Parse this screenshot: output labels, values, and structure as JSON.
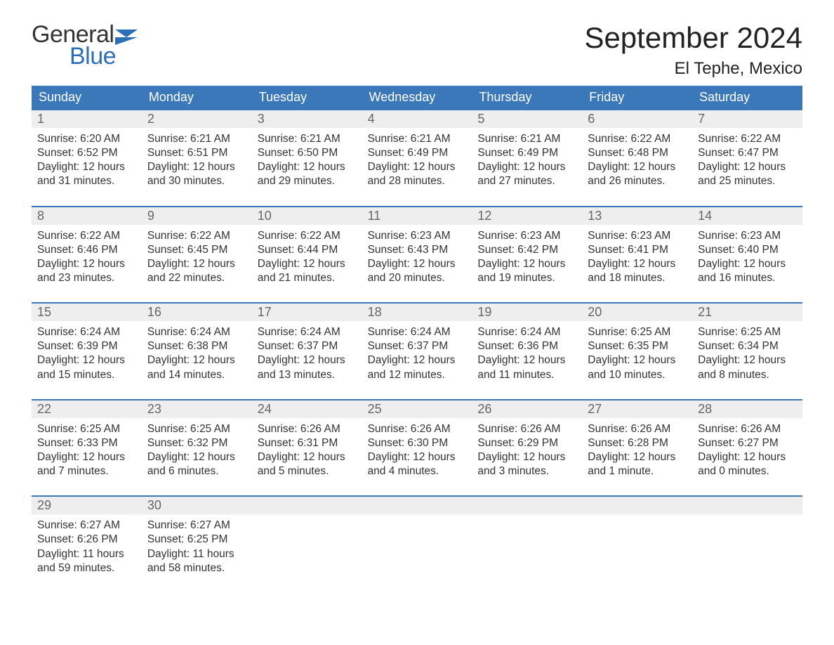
{
  "logo": {
    "general": "General",
    "blue": "Blue",
    "flag_color": "#2d6fb5"
  },
  "header": {
    "month_title": "September 2024",
    "location": "El Tephe, Mexico"
  },
  "style": {
    "header_bg": "#3a78b9",
    "header_text": "#ffffff",
    "daynum_bg": "#eeeeee",
    "daynum_color": "#666666",
    "body_text": "#333333",
    "week_border": "#3a78b9",
    "page_bg": "#ffffff",
    "title_fontsize": 42,
    "location_fontsize": 24,
    "dayhead_fontsize": 18,
    "body_fontsize": 15.5
  },
  "day_names": [
    "Sunday",
    "Monday",
    "Tuesday",
    "Wednesday",
    "Thursday",
    "Friday",
    "Saturday"
  ],
  "weeks": [
    [
      {
        "n": "1",
        "sunrise": "Sunrise: 6:20 AM",
        "sunset": "Sunset: 6:52 PM",
        "daylight": "Daylight: 12 hours and 31 minutes."
      },
      {
        "n": "2",
        "sunrise": "Sunrise: 6:21 AM",
        "sunset": "Sunset: 6:51 PM",
        "daylight": "Daylight: 12 hours and 30 minutes."
      },
      {
        "n": "3",
        "sunrise": "Sunrise: 6:21 AM",
        "sunset": "Sunset: 6:50 PM",
        "daylight": "Daylight: 12 hours and 29 minutes."
      },
      {
        "n": "4",
        "sunrise": "Sunrise: 6:21 AM",
        "sunset": "Sunset: 6:49 PM",
        "daylight": "Daylight: 12 hours and 28 minutes."
      },
      {
        "n": "5",
        "sunrise": "Sunrise: 6:21 AM",
        "sunset": "Sunset: 6:49 PM",
        "daylight": "Daylight: 12 hours and 27 minutes."
      },
      {
        "n": "6",
        "sunrise": "Sunrise: 6:22 AM",
        "sunset": "Sunset: 6:48 PM",
        "daylight": "Daylight: 12 hours and 26 minutes."
      },
      {
        "n": "7",
        "sunrise": "Sunrise: 6:22 AM",
        "sunset": "Sunset: 6:47 PM",
        "daylight": "Daylight: 12 hours and 25 minutes."
      }
    ],
    [
      {
        "n": "8",
        "sunrise": "Sunrise: 6:22 AM",
        "sunset": "Sunset: 6:46 PM",
        "daylight": "Daylight: 12 hours and 23 minutes."
      },
      {
        "n": "9",
        "sunrise": "Sunrise: 6:22 AM",
        "sunset": "Sunset: 6:45 PM",
        "daylight": "Daylight: 12 hours and 22 minutes."
      },
      {
        "n": "10",
        "sunrise": "Sunrise: 6:22 AM",
        "sunset": "Sunset: 6:44 PM",
        "daylight": "Daylight: 12 hours and 21 minutes."
      },
      {
        "n": "11",
        "sunrise": "Sunrise: 6:23 AM",
        "sunset": "Sunset: 6:43 PM",
        "daylight": "Daylight: 12 hours and 20 minutes."
      },
      {
        "n": "12",
        "sunrise": "Sunrise: 6:23 AM",
        "sunset": "Sunset: 6:42 PM",
        "daylight": "Daylight: 12 hours and 19 minutes."
      },
      {
        "n": "13",
        "sunrise": "Sunrise: 6:23 AM",
        "sunset": "Sunset: 6:41 PM",
        "daylight": "Daylight: 12 hours and 18 minutes."
      },
      {
        "n": "14",
        "sunrise": "Sunrise: 6:23 AM",
        "sunset": "Sunset: 6:40 PM",
        "daylight": "Daylight: 12 hours and 16 minutes."
      }
    ],
    [
      {
        "n": "15",
        "sunrise": "Sunrise: 6:24 AM",
        "sunset": "Sunset: 6:39 PM",
        "daylight": "Daylight: 12 hours and 15 minutes."
      },
      {
        "n": "16",
        "sunrise": "Sunrise: 6:24 AM",
        "sunset": "Sunset: 6:38 PM",
        "daylight": "Daylight: 12 hours and 14 minutes."
      },
      {
        "n": "17",
        "sunrise": "Sunrise: 6:24 AM",
        "sunset": "Sunset: 6:37 PM",
        "daylight": "Daylight: 12 hours and 13 minutes."
      },
      {
        "n": "18",
        "sunrise": "Sunrise: 6:24 AM",
        "sunset": "Sunset: 6:37 PM",
        "daylight": "Daylight: 12 hours and 12 minutes."
      },
      {
        "n": "19",
        "sunrise": "Sunrise: 6:24 AM",
        "sunset": "Sunset: 6:36 PM",
        "daylight": "Daylight: 12 hours and 11 minutes."
      },
      {
        "n": "20",
        "sunrise": "Sunrise: 6:25 AM",
        "sunset": "Sunset: 6:35 PM",
        "daylight": "Daylight: 12 hours and 10 minutes."
      },
      {
        "n": "21",
        "sunrise": "Sunrise: 6:25 AM",
        "sunset": "Sunset: 6:34 PM",
        "daylight": "Daylight: 12 hours and 8 minutes."
      }
    ],
    [
      {
        "n": "22",
        "sunrise": "Sunrise: 6:25 AM",
        "sunset": "Sunset: 6:33 PM",
        "daylight": "Daylight: 12 hours and 7 minutes."
      },
      {
        "n": "23",
        "sunrise": "Sunrise: 6:25 AM",
        "sunset": "Sunset: 6:32 PM",
        "daylight": "Daylight: 12 hours and 6 minutes."
      },
      {
        "n": "24",
        "sunrise": "Sunrise: 6:26 AM",
        "sunset": "Sunset: 6:31 PM",
        "daylight": "Daylight: 12 hours and 5 minutes."
      },
      {
        "n": "25",
        "sunrise": "Sunrise: 6:26 AM",
        "sunset": "Sunset: 6:30 PM",
        "daylight": "Daylight: 12 hours and 4 minutes."
      },
      {
        "n": "26",
        "sunrise": "Sunrise: 6:26 AM",
        "sunset": "Sunset: 6:29 PM",
        "daylight": "Daylight: 12 hours and 3 minutes."
      },
      {
        "n": "27",
        "sunrise": "Sunrise: 6:26 AM",
        "sunset": "Sunset: 6:28 PM",
        "daylight": "Daylight: 12 hours and 1 minute."
      },
      {
        "n": "28",
        "sunrise": "Sunrise: 6:26 AM",
        "sunset": "Sunset: 6:27 PM",
        "daylight": "Daylight: 12 hours and 0 minutes."
      }
    ],
    [
      {
        "n": "29",
        "sunrise": "Sunrise: 6:27 AM",
        "sunset": "Sunset: 6:26 PM",
        "daylight": "Daylight: 11 hours and 59 minutes."
      },
      {
        "n": "30",
        "sunrise": "Sunrise: 6:27 AM",
        "sunset": "Sunset: 6:25 PM",
        "daylight": "Daylight: 11 hours and 58 minutes."
      },
      {
        "empty": true
      },
      {
        "empty": true
      },
      {
        "empty": true
      },
      {
        "empty": true
      },
      {
        "empty": true
      }
    ]
  ]
}
